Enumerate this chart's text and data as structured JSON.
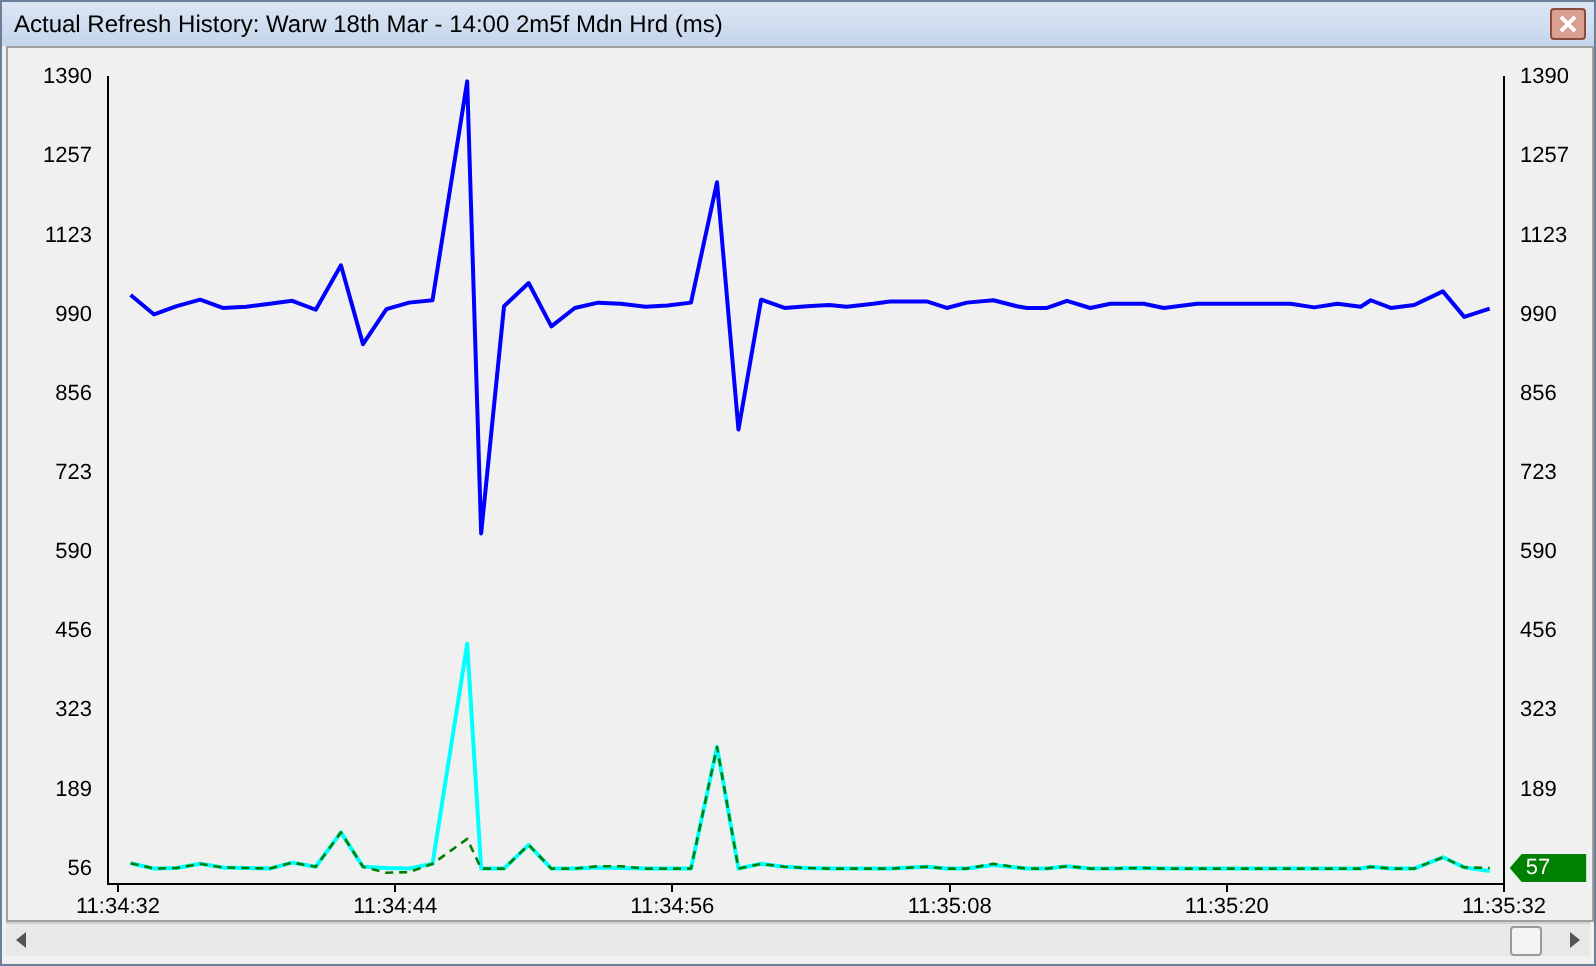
{
  "chart_data": {
    "type": "line",
    "title": "Actual Refresh History: Warw 18th Mar - 14:00 2m5f Mdn Hrd (ms)",
    "x": [
      11.575708,
      11.57599,
      11.576262,
      11.576544,
      11.576816,
      11.577098,
      11.57738,
      11.577652,
      11.577934,
      11.578237,
      11.578502,
      11.578784,
      11.579056,
      11.579338,
      11.579755,
      11.579923,
      11.580198,
      11.580494,
      11.580767,
      11.581049,
      11.58133,
      11.581603,
      11.581899,
      11.582164,
      11.582446,
      11.582759,
      11.583017,
      11.583289,
      11.583571,
      11.583843,
      11.584108,
      11.584318,
      11.584638,
      11.584838,
      11.585281,
      11.585522,
      11.585763,
      11.586083,
      11.586365,
      11.586486,
      11.586727,
      11.586967,
      11.587247,
      11.587488,
      11.58789,
      11.588131,
      11.588533,
      11.589656,
      11.589938,
      11.59022,
      11.590499,
      11.59062,
      11.59086,
      11.591142,
      11.591487,
      11.591744,
      11.59205
    ],
    "series": [
      {
        "color": "#0000ff",
        "values": [
          1023,
          990,
          1004,
          1015,
          1001,
          1003,
          1008,
          1013,
          998,
          1073,
          940,
          999,
          1010,
          1014,
          1383,
          621,
          1004,
          1043,
          970,
          1001,
          1010,
          1008,
          1003,
          1005,
          1010,
          1213,
          796,
          1015,
          1001,
          1004,
          1006,
          1003,
          1008,
          1012,
          1012,
          1001,
          1010,
          1014,
          1004,
          1001,
          1001,
          1013,
          1001,
          1008,
          1008,
          1001,
          1008,
          1008,
          1002,
          1008,
          1003,
          1014,
          1001,
          1006,
          1029,
          986,
          1000
        ]
      },
      {
        "color": "#008000",
        "line_style": "dashed",
        "values": [
          65,
          56,
          57,
          64,
          58,
          57,
          56,
          66,
          59,
          117,
          59,
          49,
          50,
          64,
          106,
          56,
          56,
          96,
          56,
          56,
          60,
          60,
          56,
          56,
          56,
          261,
          56,
          64,
          59,
          57,
          56,
          56,
          56,
          56,
          59,
          56,
          56,
          64,
          58,
          56,
          56,
          60,
          56,
          56,
          57,
          56,
          56,
          56,
          56,
          56,
          56,
          59,
          56,
          56,
          75,
          58,
          57
        ]
      },
      {
        "color": "#00ffff",
        "values": [
          65,
          56,
          57,
          64,
          58,
          57,
          56,
          66,
          59,
          117,
          59,
          57,
          56,
          64,
          435,
          56,
          56,
          96,
          56,
          56,
          58,
          57,
          56,
          56,
          56,
          261,
          56,
          64,
          59,
          57,
          56,
          56,
          56,
          56,
          59,
          56,
          56,
          62,
          58,
          56,
          56,
          60,
          56,
          56,
          57,
          56,
          56,
          56,
          56,
          56,
          56,
          59,
          56,
          56,
          75,
          58,
          52
        ]
      }
    ],
    "xlim": [
      11.575436,
      11.592222
    ],
    "xticks": [
      {
        "value": 11.575556,
        "label": "11:34:32"
      },
      {
        "value": 11.578889,
        "label": "11:34:44"
      },
      {
        "value": 11.582222,
        "label": "11:34:56"
      },
      {
        "value": 11.585556,
        "label": "11:35:08"
      },
      {
        "value": 11.588889,
        "label": "11:35:20"
      },
      {
        "value": 11.592222,
        "label": "11:35:32"
      }
    ],
    "ylim": [
      30,
      1390
    ],
    "yticks": [
      56,
      189,
      323,
      456,
      590,
      723,
      856,
      990,
      1123,
      1257,
      1390
    ],
    "y2lim": [
      30,
      1390
    ],
    "y2ticks": [
      189,
      323,
      456,
      590,
      723,
      856,
      990,
      1123,
      1257,
      1390
    ],
    "annotations": [
      {
        "text": "57",
        "x": 11.59205,
        "y": 57
      }
    ],
    "legend": false,
    "grid": false
  }
}
